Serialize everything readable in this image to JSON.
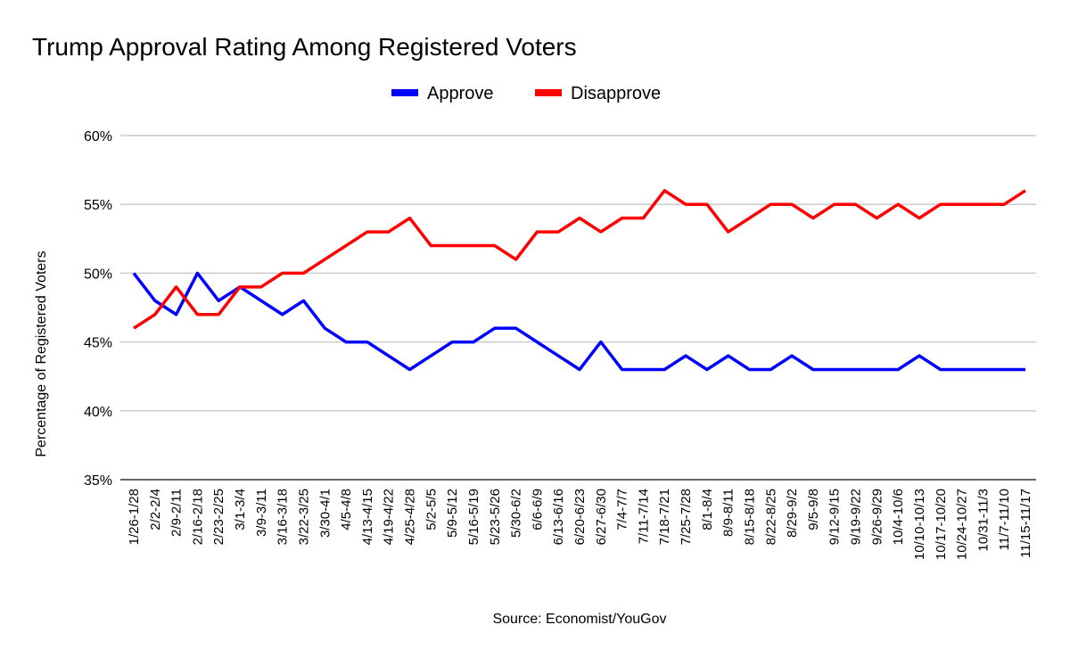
{
  "chart_data": {
    "type": "line",
    "title": "Trump Approval Rating Among Registered Voters",
    "ylabel": "Percentage of Registered Voters",
    "xlabel": "",
    "source": "Source: Economist/YouGov",
    "ylim": [
      35,
      60
    ],
    "yticks": [
      35,
      40,
      45,
      50,
      55,
      60
    ],
    "ytick_labels": [
      "35%",
      "40%",
      "45%",
      "50%",
      "55%",
      "60%"
    ],
    "grid": true,
    "legend_position": "top-center",
    "categories": [
      "1/26-1/28",
      "2/2-2/4",
      "2/9-2/11",
      "2/16-2/18",
      "2/23-2/25",
      "3/1-3/4",
      "3/9-3/11",
      "3/16-3/18",
      "3/22-3/25",
      "3/30-4/1",
      "4/5-4/8",
      "4/13-4/15",
      "4/19-4/22",
      "4/25-4/28",
      "5/2-5/5",
      "5/9-5/12",
      "5/16-5/19",
      "5/23-5/26",
      "5/30-6/2",
      "6/6-6/9",
      "6/13-6/16",
      "6/20-6/23",
      "6/27-6/30",
      "7/4-7/7",
      "7/11-7/14",
      "7/18-7/21",
      "7/25-7/28",
      "8/1-8/4",
      "8/9-8/11",
      "8/15-8/18",
      "8/22-8/25",
      "8/29-9/2",
      "9/5-9/8",
      "9/12-9/15",
      "9/19-9/22",
      "9/26-9/29",
      "10/4-10/6",
      "10/10-10/13",
      "10/17-10/20",
      "10/24-10/27",
      "10/31-11/3",
      "11/7-11/10",
      "11/15-11/17"
    ],
    "series": [
      {
        "name": "Approve",
        "color": "#0000ff",
        "values": [
          50,
          48,
          47,
          50,
          48,
          49,
          48,
          47,
          48,
          46,
          45,
          45,
          44,
          43,
          44,
          45,
          45,
          46,
          46,
          45,
          44,
          43,
          45,
          43,
          43,
          43,
          44,
          43,
          44,
          43,
          43,
          44,
          43,
          43,
          43,
          43,
          43,
          44,
          43,
          43,
          43,
          43,
          43
        ]
      },
      {
        "name": "Disapprove",
        "color": "#ff0000",
        "values": [
          46,
          47,
          49,
          47,
          47,
          49,
          49,
          50,
          50,
          51,
          52,
          53,
          53,
          54,
          52,
          52,
          52,
          52,
          51,
          53,
          53,
          54,
          53,
          54,
          54,
          56,
          55,
          55,
          53,
          54,
          55,
          55,
          54,
          55,
          55,
          54,
          55,
          54,
          55,
          55,
          55,
          55,
          56
        ]
      }
    ]
  }
}
